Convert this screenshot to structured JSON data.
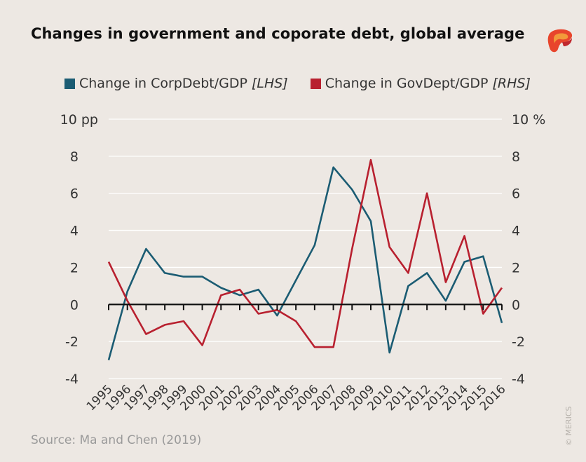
{
  "header": {
    "title": "Changes in government and coporate debt, global average"
  },
  "legend": {
    "items": [
      {
        "label": "Change in CorpDebt/GDP",
        "tag": "[LHS]",
        "color": "#1b5c73"
      },
      {
        "label": "Change in GovDept/GDP",
        "tag": "[RHS]",
        "color": "#b8202f"
      }
    ]
  },
  "footer": {
    "source": "Source: Ma and Chen (2019)",
    "copyright": "© MERICS"
  },
  "chart_data": {
    "type": "line",
    "title": "Changes in government and coporate debt, global average",
    "x": [
      "1995",
      "1996",
      "1997",
      "1998",
      "1999",
      "2000",
      "2001",
      "2002",
      "2003",
      "2004",
      "2005",
      "2006",
      "2007",
      "2008",
      "2009",
      "2010",
      "2011",
      "2012",
      "2013",
      "2014",
      "2015",
      "2016"
    ],
    "series": [
      {
        "name": "Change in CorpDebt/GDP [LHS]",
        "axis": "left",
        "color": "#1b5c73",
        "values": [
          -3.0,
          0.7,
          3.0,
          1.7,
          1.5,
          1.5,
          0.9,
          0.5,
          0.8,
          -0.6,
          1.3,
          3.2,
          7.4,
          6.2,
          4.5,
          -2.6,
          1.0,
          1.7,
          0.2,
          2.3,
          2.6,
          -1.0
        ]
      },
      {
        "name": "Change in GovDept/GDP [RHS]",
        "axis": "right",
        "color": "#b8202f",
        "values": [
          2.3,
          0.2,
          -1.6,
          -1.1,
          -0.9,
          -2.2,
          0.5,
          0.8,
          -0.5,
          -0.3,
          -0.9,
          -2.3,
          -2.3,
          3.0,
          7.8,
          3.1,
          1.7,
          6.0,
          1.2,
          3.7,
          -0.5,
          0.9
        ]
      }
    ],
    "ylim": [
      -4,
      10
    ],
    "y_ticks": [
      -4,
      -2,
      0,
      2,
      4,
      6,
      8,
      10
    ],
    "y_tick_labels_left": [
      "-4",
      "-2",
      "0",
      "2",
      "4",
      "6",
      "8",
      "10 pp"
    ],
    "y_tick_labels_right": [
      "-4",
      "-2",
      "0",
      "2",
      "4",
      "6",
      "8",
      "10 %"
    ],
    "grid": true,
    "legend_position": "top"
  }
}
